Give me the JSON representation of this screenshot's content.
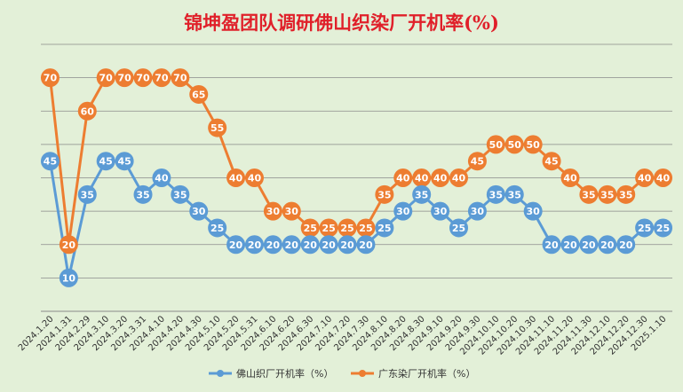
{
  "chart_data": {
    "type": "line",
    "title": "锦坤盈团队调研佛山织染厂开机率(%)",
    "xlabel": "",
    "ylabel": "",
    "ylim": [
      0,
      80
    ],
    "grid": true,
    "legend_position": "bottom",
    "categories": [
      "2024.1.20",
      "2024.1.31",
      "2024.2.29",
      "2024.3.10",
      "2024.3.20",
      "2024.3.31",
      "2024.4.10",
      "2024.4.20",
      "2024.4.30",
      "2024.5.10",
      "2024.5.20",
      "2024.5.31",
      "2024.6.10",
      "2024.6.20",
      "2024.6.30",
      "2024.7.10",
      "2024.7.20",
      "2024.7.30",
      "2024.8.10",
      "2024.8.20",
      "2024.8.30",
      "2024.9.10",
      "2024.9.20",
      "2024.9.30",
      "2024.10.10",
      "2024.10.20",
      "2024.10.30",
      "2024.11.10",
      "2024.11.20",
      "2024.11.30",
      "2024.12.10",
      "2024.12.20",
      "2024.12.30",
      "2025.1.10"
    ],
    "series": [
      {
        "name": "佛山织厂开机率（%）",
        "color": "#5b9bd5",
        "values": [
          45,
          10,
          35,
          45,
          45,
          35,
          40,
          35,
          30,
          25,
          20,
          20,
          20,
          20,
          20,
          20,
          20,
          20,
          25,
          30,
          35,
          30,
          25,
          30,
          35,
          35,
          30,
          20,
          20,
          20,
          20,
          20,
          25,
          25
        ]
      },
      {
        "name": "广东染厂开机率（%）",
        "color": "#ed7d31",
        "values": [
          70,
          20,
          60,
          70,
          70,
          70,
          70,
          70,
          65,
          55,
          40,
          40,
          30,
          30,
          25,
          25,
          25,
          25,
          35,
          40,
          40,
          40,
          40,
          45,
          50,
          50,
          50,
          45,
          40,
          35,
          35,
          35,
          40,
          40
        ]
      }
    ]
  }
}
